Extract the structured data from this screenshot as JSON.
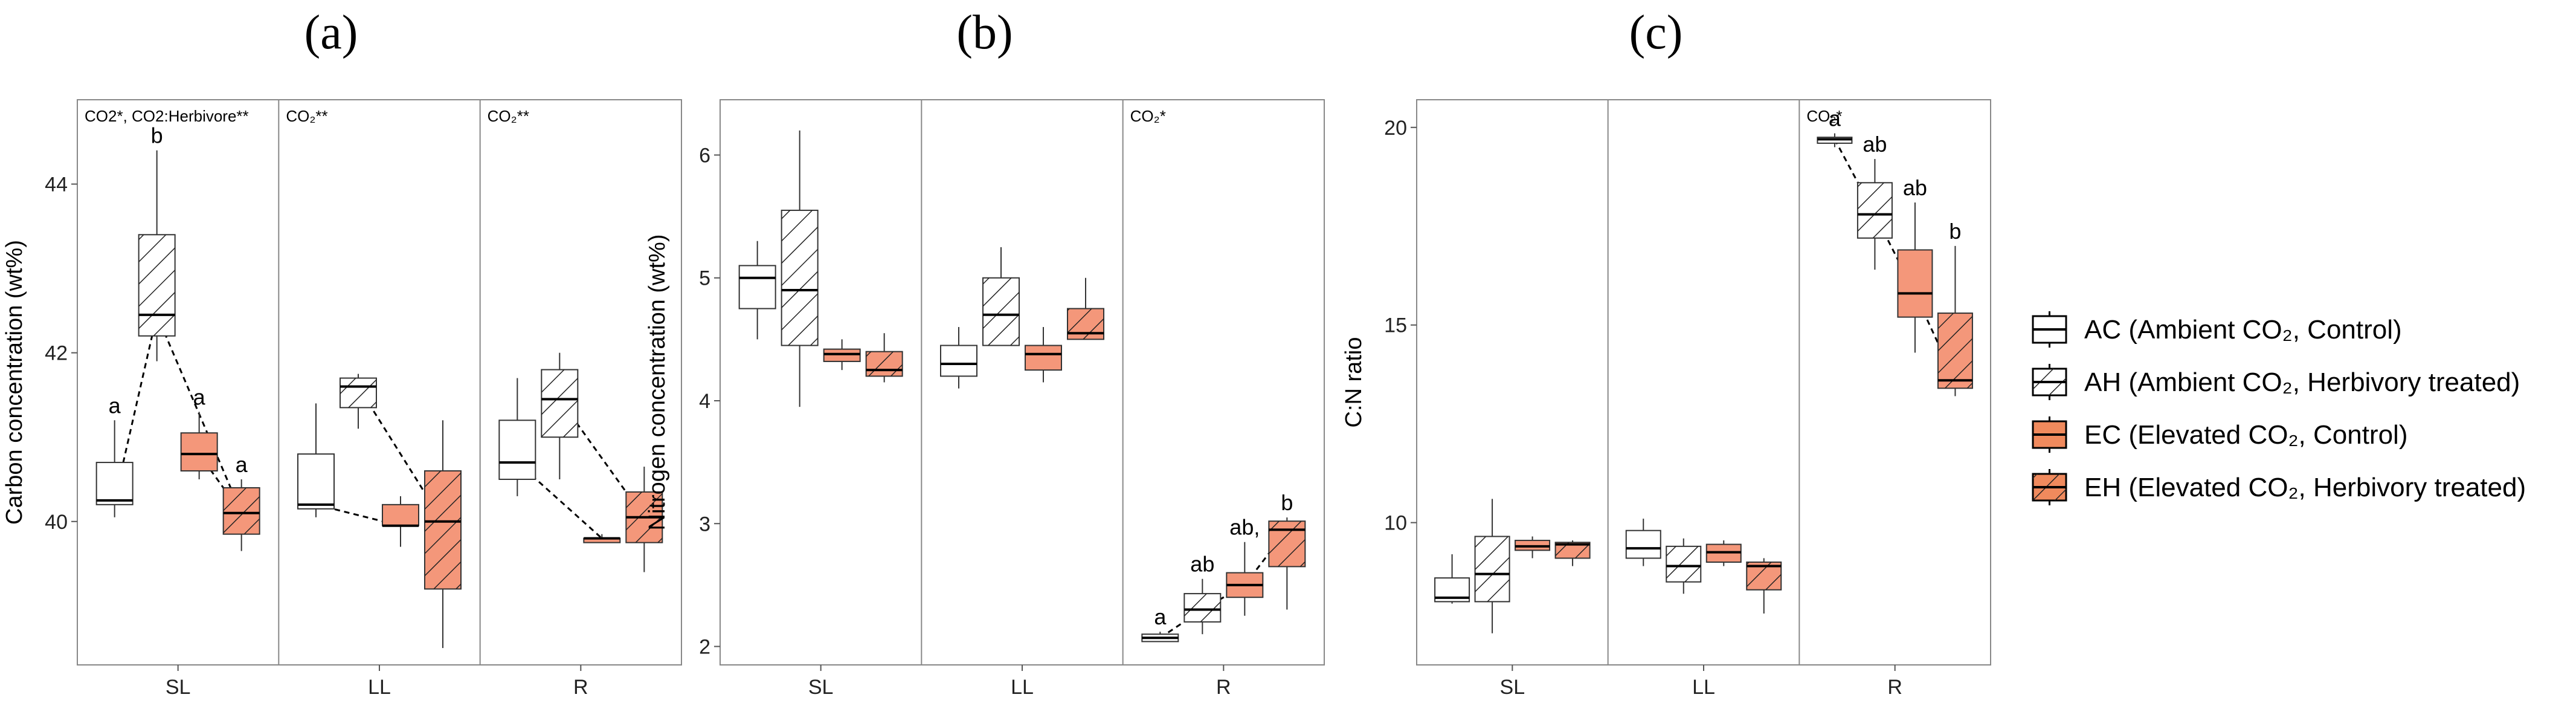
{
  "legend": {
    "items": [
      {
        "key": "AC",
        "text": "AC (Ambient CO₂, Control)",
        "fill": "#ffffff",
        "hatch": false
      },
      {
        "key": "AH",
        "text": "AH (Ambient CO₂, Herbivory treated)",
        "fill": "#ffffff",
        "hatch": true
      },
      {
        "key": "EC",
        "text": "EC (Elevated CO₂, Control)",
        "fill": "#f08a5d",
        "hatch": false
      },
      {
        "key": "EH",
        "text": "EH (Elevated CO₂, Herbivory treated)",
        "fill": "#f08a5d",
        "hatch": true
      }
    ]
  },
  "colors": {
    "ambient": "#ffffff",
    "elevated": "#f4977a",
    "stroke": "#333333",
    "panel_border": "#888888"
  },
  "chart_data": [
    {
      "panel": "(a)",
      "type": "box",
      "ylabel": "Carbon concentration (wt%)",
      "ylim": [
        38.3,
        45.0
      ],
      "yticks": [
        40,
        42,
        44
      ],
      "categories": [
        "SL",
        "LL",
        "R"
      ],
      "groups": [
        "AC",
        "AH",
        "EC",
        "EH"
      ],
      "annotations": [
        "CO2*, CO2:Herbivore**",
        "CO₂**",
        "CO₂**"
      ],
      "letters": [
        {
          "cat": 0,
          "grp": 0,
          "text": "a"
        },
        {
          "cat": 0,
          "grp": 1,
          "text": "b"
        },
        {
          "cat": 0,
          "grp": 2,
          "text": "a"
        },
        {
          "cat": 0,
          "grp": 3,
          "text": "a"
        }
      ],
      "boxes": [
        [
          [
            40.05,
            40.2,
            40.25,
            40.7,
            41.2
          ],
          [
            41.9,
            42.2,
            42.45,
            43.4,
            44.4
          ],
          [
            40.5,
            40.6,
            40.8,
            41.05,
            41.3
          ],
          [
            39.65,
            39.85,
            40.1,
            40.4,
            40.5
          ]
        ],
        [
          [
            40.05,
            40.15,
            40.2,
            40.8,
            41.4
          ],
          [
            41.1,
            41.35,
            41.6,
            41.7,
            41.75
          ],
          [
            39.7,
            39.95,
            39.95,
            40.2,
            40.3
          ],
          [
            38.5,
            39.2,
            40.0,
            40.6,
            41.2
          ]
        ],
        [
          [
            40.3,
            40.5,
            40.7,
            41.2,
            41.7
          ],
          [
            40.5,
            41.0,
            41.45,
            41.8,
            42.0
          ],
          [
            39.75,
            39.75,
            39.8,
            39.8,
            39.85
          ],
          [
            39.4,
            39.75,
            40.05,
            40.35,
            40.65
          ]
        ]
      ],
      "dashed_links": [
        [
          0,
          0,
          1
        ],
        [
          0,
          1,
          3
        ],
        [
          0,
          2,
          3
        ],
        [
          1,
          0,
          2
        ],
        [
          1,
          1,
          3
        ],
        [
          2,
          0,
          2
        ],
        [
          2,
          1,
          3
        ]
      ]
    },
    {
      "panel": "(b)",
      "type": "box",
      "ylabel": "Nitrogen concentration (wt%)",
      "ylim": [
        1.85,
        6.45
      ],
      "yticks": [
        2,
        3,
        4,
        5,
        6
      ],
      "categories": [
        "SL",
        "LL",
        "R"
      ],
      "groups": [
        "AC",
        "AH",
        "EC",
        "EH"
      ],
      "annotations": [
        "",
        "",
        "CO₂*"
      ],
      "letters": [
        {
          "cat": 2,
          "grp": 0,
          "text": "a"
        },
        {
          "cat": 2,
          "grp": 1,
          "text": "ab"
        },
        {
          "cat": 2,
          "grp": 2,
          "text": "ab,"
        },
        {
          "cat": 2,
          "grp": 3,
          "text": "b"
        }
      ],
      "boxes": [
        [
          [
            4.5,
            4.75,
            5.0,
            5.1,
            5.3
          ],
          [
            3.95,
            4.45,
            4.9,
            5.55,
            6.2
          ],
          [
            4.25,
            4.32,
            4.38,
            4.42,
            4.5
          ],
          [
            4.15,
            4.2,
            4.25,
            4.4,
            4.55
          ]
        ],
        [
          [
            4.1,
            4.2,
            4.3,
            4.45,
            4.6
          ],
          [
            4.45,
            4.45,
            4.7,
            5.0,
            5.25
          ],
          [
            4.15,
            4.25,
            4.38,
            4.45,
            4.6
          ],
          [
            4.5,
            4.5,
            4.55,
            4.75,
            5.0
          ]
        ],
        [
          [
            2.04,
            2.04,
            2.07,
            2.1,
            2.12
          ],
          [
            2.1,
            2.2,
            2.3,
            2.43,
            2.55
          ],
          [
            2.25,
            2.4,
            2.5,
            2.6,
            2.85
          ],
          [
            2.3,
            2.65,
            2.95,
            3.02,
            3.05
          ]
        ]
      ],
      "dashed_links": [
        [
          2,
          0,
          1
        ],
        [
          2,
          1,
          2
        ],
        [
          2,
          2,
          3
        ]
      ]
    },
    {
      "panel": "(c)",
      "type": "box",
      "ylabel": "C:N ratio",
      "ylim": [
        6.4,
        20.7
      ],
      "yticks": [
        10,
        15,
        20
      ],
      "categories": [
        "SL",
        "LL",
        "R"
      ],
      "groups": [
        "AC",
        "AH",
        "EC",
        "EH"
      ],
      "annotations": [
        "",
        "",
        "CO₂*"
      ],
      "letters": [
        {
          "cat": 2,
          "grp": 0,
          "text": "a"
        },
        {
          "cat": 2,
          "grp": 1,
          "text": "ab"
        },
        {
          "cat": 2,
          "grp": 2,
          "text": "ab"
        },
        {
          "cat": 2,
          "grp": 3,
          "text": "b"
        }
      ],
      "boxes": [
        [
          [
            7.95,
            8.0,
            8.1,
            8.6,
            9.2
          ],
          [
            7.2,
            8.0,
            8.7,
            9.65,
            10.6
          ],
          [
            9.1,
            9.3,
            9.4,
            9.55,
            9.65
          ],
          [
            8.9,
            9.1,
            9.45,
            9.5,
            9.55
          ]
        ],
        [
          [
            8.9,
            9.1,
            9.35,
            9.8,
            10.1
          ],
          [
            8.2,
            8.5,
            8.9,
            9.4,
            9.6
          ],
          [
            8.9,
            9.0,
            9.25,
            9.45,
            9.55
          ],
          [
            7.7,
            8.3,
            8.9,
            9.0,
            9.1
          ]
        ],
        [
          [
            19.5,
            19.6,
            19.7,
            19.75,
            19.85
          ],
          [
            16.4,
            17.2,
            17.8,
            18.6,
            19.2
          ],
          [
            14.3,
            15.2,
            15.8,
            16.9,
            18.1
          ],
          [
            13.2,
            13.4,
            13.6,
            15.3,
            17.0
          ]
        ]
      ],
      "dashed_links": [
        [
          2,
          0,
          1
        ],
        [
          2,
          1,
          2
        ],
        [
          2,
          2,
          3
        ]
      ]
    }
  ]
}
